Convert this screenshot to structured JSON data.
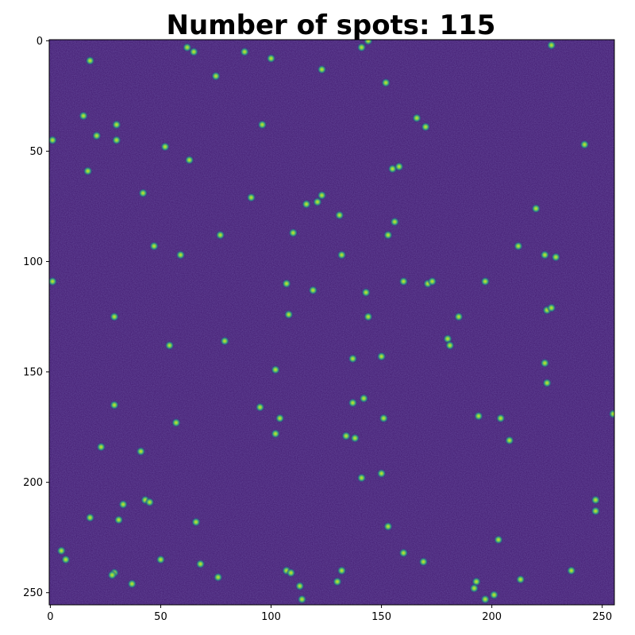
{
  "figure": {
    "title": "Number of spots: 115"
  },
  "colors": {
    "background": "#ffffff",
    "image_base": "#41196f",
    "spot_core": "#d8e21c",
    "spot_mid": "#43b97c",
    "spot_edge": "#25707e",
    "axis": "#000000"
  },
  "chart_data": {
    "type": "heatmap",
    "title": "Number of spots: 115",
    "colormap": "viridis",
    "image_size": [
      256,
      256
    ],
    "xlim": [
      0,
      255
    ],
    "ylim": [
      255,
      0
    ],
    "y_axis_inverted": true,
    "grid": false,
    "xlabel": "",
    "ylabel": "",
    "x_ticks": [
      0,
      50,
      100,
      150,
      200,
      250
    ],
    "y_ticks": [
      0,
      50,
      100,
      150,
      200,
      250
    ],
    "spot_count": 115,
    "spots": [
      {
        "x": 62,
        "y": 3
      },
      {
        "x": 65,
        "y": 5
      },
      {
        "x": 18,
        "y": 9
      },
      {
        "x": 100,
        "y": 8
      },
      {
        "x": 141,
        "y": 3
      },
      {
        "x": 144,
        "y": 0
      },
      {
        "x": 227,
        "y": 2
      },
      {
        "x": 123,
        "y": 13
      },
      {
        "x": 75,
        "y": 16
      },
      {
        "x": 152,
        "y": 19
      },
      {
        "x": 15,
        "y": 34
      },
      {
        "x": 30,
        "y": 38
      },
      {
        "x": 96,
        "y": 38
      },
      {
        "x": 166,
        "y": 35
      },
      {
        "x": 170,
        "y": 39
      },
      {
        "x": 21,
        "y": 43
      },
      {
        "x": 1,
        "y": 45
      },
      {
        "x": 30,
        "y": 45
      },
      {
        "x": 52,
        "y": 48
      },
      {
        "x": 242,
        "y": 47
      },
      {
        "x": 63,
        "y": 54
      },
      {
        "x": 17,
        "y": 59
      },
      {
        "x": 155,
        "y": 58
      },
      {
        "x": 158,
        "y": 57
      },
      {
        "x": 42,
        "y": 69
      },
      {
        "x": 91,
        "y": 71
      },
      {
        "x": 123,
        "y": 70
      },
      {
        "x": 116,
        "y": 74
      },
      {
        "x": 121,
        "y": 73
      },
      {
        "x": 220,
        "y": 76
      },
      {
        "x": 131,
        "y": 79
      },
      {
        "x": 156,
        "y": 82
      },
      {
        "x": 77,
        "y": 88
      },
      {
        "x": 110,
        "y": 87
      },
      {
        "x": 153,
        "y": 88
      },
      {
        "x": 47,
        "y": 93
      },
      {
        "x": 59,
        "y": 97
      },
      {
        "x": 132,
        "y": 97
      },
      {
        "x": 212,
        "y": 93
      },
      {
        "x": 224,
        "y": 97
      },
      {
        "x": 229,
        "y": 98
      },
      {
        "x": 1,
        "y": 109
      },
      {
        "x": 107,
        "y": 110
      },
      {
        "x": 119,
        "y": 113
      },
      {
        "x": 143,
        "y": 114
      },
      {
        "x": 160,
        "y": 109
      },
      {
        "x": 171,
        "y": 110
      },
      {
        "x": 173,
        "y": 109
      },
      {
        "x": 197,
        "y": 109
      },
      {
        "x": 29,
        "y": 125
      },
      {
        "x": 108,
        "y": 124
      },
      {
        "x": 144,
        "y": 125
      },
      {
        "x": 185,
        "y": 125
      },
      {
        "x": 225,
        "y": 122
      },
      {
        "x": 227,
        "y": 121
      },
      {
        "x": 54,
        "y": 138
      },
      {
        "x": 79,
        "y": 136
      },
      {
        "x": 180,
        "y": 135
      },
      {
        "x": 181,
        "y": 138
      },
      {
        "x": 137,
        "y": 144
      },
      {
        "x": 150,
        "y": 143
      },
      {
        "x": 224,
        "y": 146
      },
      {
        "x": 102,
        "y": 149
      },
      {
        "x": 225,
        "y": 155
      },
      {
        "x": 142,
        "y": 162
      },
      {
        "x": 29,
        "y": 165
      },
      {
        "x": 95,
        "y": 166
      },
      {
        "x": 137,
        "y": 164
      },
      {
        "x": 255,
        "y": 169
      },
      {
        "x": 57,
        "y": 173
      },
      {
        "x": 104,
        "y": 171
      },
      {
        "x": 151,
        "y": 171
      },
      {
        "x": 194,
        "y": 170
      },
      {
        "x": 204,
        "y": 171
      },
      {
        "x": 102,
        "y": 178
      },
      {
        "x": 134,
        "y": 179
      },
      {
        "x": 138,
        "y": 180
      },
      {
        "x": 208,
        "y": 181
      },
      {
        "x": 23,
        "y": 184
      },
      {
        "x": 41,
        "y": 186
      },
      {
        "x": 141,
        "y": 198
      },
      {
        "x": 150,
        "y": 196
      },
      {
        "x": 43,
        "y": 208
      },
      {
        "x": 45,
        "y": 209
      },
      {
        "x": 33,
        "y": 210
      },
      {
        "x": 247,
        "y": 208
      },
      {
        "x": 247,
        "y": 213
      },
      {
        "x": 18,
        "y": 216
      },
      {
        "x": 31,
        "y": 217
      },
      {
        "x": 66,
        "y": 218
      },
      {
        "x": 153,
        "y": 220
      },
      {
        "x": 203,
        "y": 226
      },
      {
        "x": 5,
        "y": 231
      },
      {
        "x": 7,
        "y": 235
      },
      {
        "x": 50,
        "y": 235
      },
      {
        "x": 160,
        "y": 232
      },
      {
        "x": 68,
        "y": 237
      },
      {
        "x": 169,
        "y": 236
      },
      {
        "x": 29,
        "y": 241
      },
      {
        "x": 28,
        "y": 242
      },
      {
        "x": 107,
        "y": 240
      },
      {
        "x": 109,
        "y": 241
      },
      {
        "x": 132,
        "y": 240
      },
      {
        "x": 236,
        "y": 240
      },
      {
        "x": 76,
        "y": 243
      },
      {
        "x": 130,
        "y": 245
      },
      {
        "x": 213,
        "y": 244
      },
      {
        "x": 37,
        "y": 246
      },
      {
        "x": 113,
        "y": 247
      },
      {
        "x": 193,
        "y": 245
      },
      {
        "x": 192,
        "y": 248
      },
      {
        "x": 114,
        "y": 253
      },
      {
        "x": 197,
        "y": 253
      },
      {
        "x": 201,
        "y": 251
      },
      {
        "x": 88,
        "y": 5
      }
    ]
  }
}
